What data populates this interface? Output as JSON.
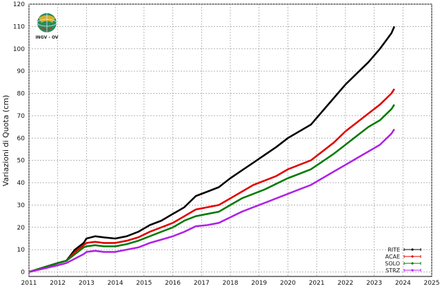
{
  "logo": {
    "text": "INGV - OV"
  },
  "chart_data": {
    "type": "line",
    "title": "",
    "xlabel": "",
    "ylabel": "Variazioni di Quota (cm)",
    "xlim": [
      2011,
      2025
    ],
    "ylim": [
      -2,
      120
    ],
    "x_ticks": [
      "2011",
      "2012",
      "2013",
      "2014",
      "2015",
      "2016",
      "2017",
      "2018",
      "2019",
      "2020",
      "2021",
      "2022",
      "2023",
      "2024",
      "2025"
    ],
    "y_ticks": [
      "0",
      "10",
      "20",
      "30",
      "40",
      "50",
      "60",
      "70",
      "80",
      "90",
      "100",
      "110",
      "120"
    ],
    "grid": true,
    "legend_position": "bottom-right",
    "series": [
      {
        "name": "RITE",
        "color": "#000000",
        "x": [
          2011.0,
          2011.5,
          2012.0,
          2012.3,
          2012.6,
          2012.9,
          2013.0,
          2013.3,
          2013.6,
          2014.0,
          2014.4,
          2014.8,
          2015.2,
          2015.6,
          2016.0,
          2016.4,
          2016.8,
          2017.2,
          2017.6,
          2018.0,
          2018.4,
          2018.8,
          2019.2,
          2019.6,
          2020.0,
          2020.4,
          2020.8,
          2021.2,
          2021.6,
          2022.0,
          2022.4,
          2022.8,
          2023.2,
          2023.6,
          2023.7
        ],
        "y": [
          0,
          2,
          4,
          5,
          10,
          13,
          15,
          16,
          15.5,
          15,
          16,
          18,
          21,
          23,
          26,
          29,
          34,
          36,
          38,
          42,
          45.5,
          49,
          52.5,
          56,
          60,
          63,
          66,
          72,
          78,
          84,
          89,
          94,
          100,
          107,
          110
        ]
      },
      {
        "name": "ACAE",
        "color": "#e00000",
        "x": [
          2011.0,
          2011.5,
          2012.0,
          2012.3,
          2012.6,
          2012.9,
          2013.0,
          2013.3,
          2013.6,
          2014.0,
          2014.4,
          2014.8,
          2015.2,
          2015.6,
          2016.0,
          2016.4,
          2016.8,
          2017.2,
          2017.6,
          2018.0,
          2018.4,
          2018.8,
          2019.2,
          2019.6,
          2020.0,
          2020.4,
          2020.8,
          2021.2,
          2021.6,
          2022.0,
          2022.4,
          2022.8,
          2023.2,
          2023.6,
          2023.7
        ],
        "y": [
          0,
          2,
          4,
          5,
          9,
          12,
          13,
          13.5,
          13,
          13,
          14,
          15.5,
          18,
          20,
          22,
          25,
          28,
          29,
          30,
          33,
          36,
          39,
          41,
          43,
          46,
          48,
          50,
          54,
          58,
          63,
          67,
          71,
          75,
          80,
          82
        ]
      },
      {
        "name": "SOLO",
        "color": "#007a00",
        "x": [
          2011.0,
          2011.5,
          2012.0,
          2012.3,
          2012.6,
          2012.9,
          2013.0,
          2013.3,
          2013.6,
          2014.0,
          2014.4,
          2014.8,
          2015.2,
          2015.6,
          2016.0,
          2016.4,
          2016.8,
          2017.2,
          2017.6,
          2018.0,
          2018.4,
          2018.8,
          2019.2,
          2019.6,
          2020.0,
          2020.4,
          2020.8,
          2021.2,
          2021.6,
          2022.0,
          2022.4,
          2022.8,
          2023.2,
          2023.6,
          2023.7
        ],
        "y": [
          0,
          2,
          4,
          5,
          8,
          11,
          11.5,
          12,
          11.5,
          11.5,
          12.5,
          14,
          16,
          18,
          20,
          23,
          25,
          26,
          27,
          30,
          33,
          35,
          37,
          39.5,
          42,
          44,
          46,
          49.5,
          53,
          57,
          61,
          65,
          68,
          73,
          75
        ]
      },
      {
        "name": "STRZ",
        "color": "#b020e8",
        "x": [
          2011.0,
          2011.5,
          2012.0,
          2012.3,
          2012.6,
          2012.9,
          2013.0,
          2013.3,
          2013.6,
          2014.0,
          2014.4,
          2014.8,
          2015.2,
          2015.6,
          2016.0,
          2016.4,
          2016.8,
          2017.2,
          2017.6,
          2018.0,
          2018.4,
          2018.8,
          2019.2,
          2019.6,
          2020.0,
          2020.4,
          2020.8,
          2021.2,
          2021.6,
          2022.0,
          2022.4,
          2022.8,
          2023.2,
          2023.6,
          2023.7
        ],
        "y": [
          0,
          1.5,
          3,
          4,
          6,
          8,
          9,
          9.5,
          9,
          9,
          10,
          11,
          13,
          14.5,
          16,
          18,
          20.5,
          21,
          22,
          24.5,
          27,
          29,
          31,
          33,
          35,
          37,
          39,
          42,
          45,
          48,
          51,
          54,
          57,
          62,
          64
        ]
      }
    ]
  }
}
